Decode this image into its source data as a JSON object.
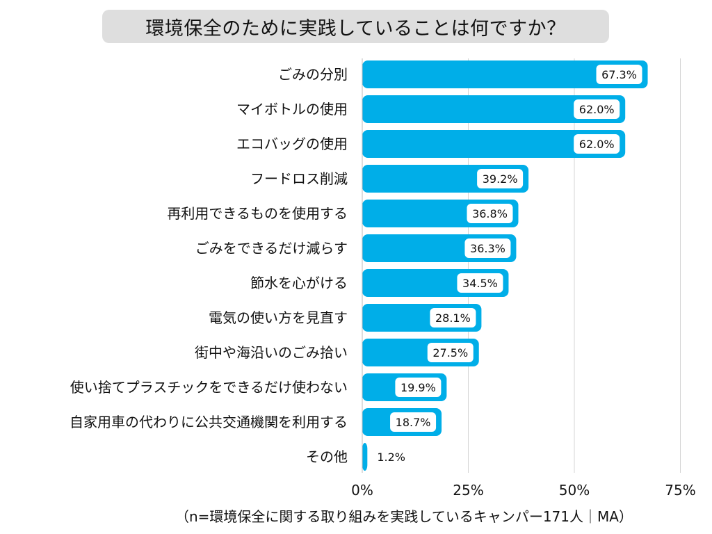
{
  "chart_data": {
    "type": "bar",
    "orientation": "horizontal",
    "title": "環境保全のために実践していることは何ですか？",
    "categories": [
      "ごみの分別",
      "マイボトルの使用",
      "エコバッグの使用",
      "フードロス削減",
      "再利用できるものを使用する",
      "ごみをできるだけ減らす",
      "節水を心がける",
      "電気の使い方を見直す",
      "街中や海沿いのごみ拾い",
      "使い捨てプラスチックをできるだけ使わない",
      "自家用車の代わりに公共交通機関を利用する",
      "その他"
    ],
    "values": [
      67.3,
      62.0,
      62.0,
      39.2,
      36.8,
      36.3,
      34.5,
      28.1,
      27.5,
      19.9,
      18.7,
      1.2
    ],
    "value_labels": [
      "67.3%",
      "62.0%",
      "62.0%",
      "39.2%",
      "36.8%",
      "36.3%",
      "34.5%",
      "28.1%",
      "27.5%",
      "19.9%",
      "18.7%",
      "1.2%"
    ],
    "xlim": [
      0,
      75
    ],
    "xticks": [
      0,
      25,
      50,
      75
    ],
    "xtick_labels": [
      "0%",
      "25%",
      "50%",
      "75%"
    ],
    "grid": true,
    "bar_color": "#00aee8",
    "note": "（n=環境保全に関する取り組みを実践しているキャンパー171人｜MA）"
  }
}
